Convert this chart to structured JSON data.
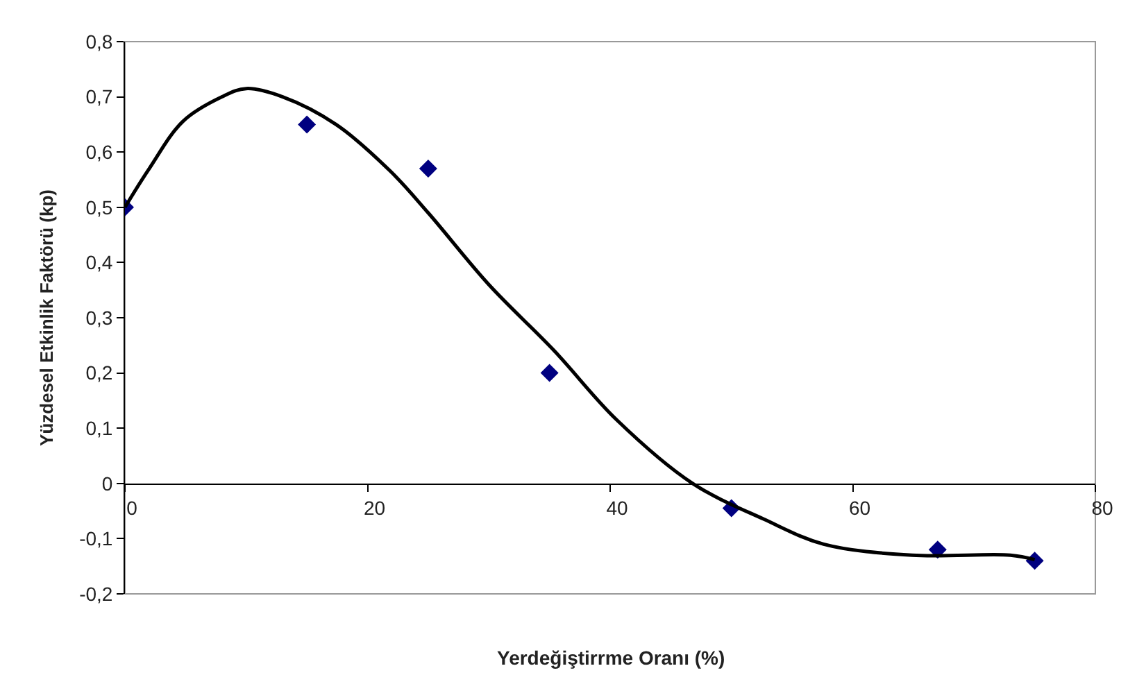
{
  "chart_data": {
    "type": "scatter",
    "xlabel": "Yerdeğiştirrme Oranı (%)",
    "ylabel": "Yüzdesel Etkinlik Faktörü (kp)",
    "x": [
      0,
      15,
      25,
      35,
      50,
      67,
      75
    ],
    "series": [
      {
        "color": "#000080",
        "marker": "diamond",
        "values": [
          0.5,
          0.65,
          0.57,
          0.2,
          -0.045,
          -0.12,
          -0.14
        ]
      },
      {
        "type": "line",
        "color": "#000000",
        "marker": "none",
        "x": [
          0,
          2,
          4.8,
          8,
          10,
          13,
          17.4,
          21.9,
          25,
          30,
          35.4,
          40.5,
          46.8,
          52.7,
          57.6,
          64.9,
          73,
          75
        ],
        "values": [
          0.5,
          0.57,
          0.656,
          0.7,
          0.715,
          0.7,
          0.65,
          0.565,
          0.49,
          0.36,
          0.24,
          0.116,
          0,
          -0.065,
          -0.11,
          -0.13,
          -0.13,
          -0.138
        ]
      }
    ],
    "xlim": [
      0,
      80
    ],
    "xticks": [
      0,
      20,
      40,
      60,
      80
    ],
    "ylim": [
      -0.2,
      0.8
    ],
    "yticks": [
      {
        "value": -0.2,
        "label": "-0,2"
      },
      {
        "value": -0.1,
        "label": "-0,1"
      },
      0,
      {
        "value": 0.1,
        "label": "0,1"
      },
      {
        "value": 0.2,
        "label": "0,2"
      },
      {
        "value": 0.3,
        "label": "0,3"
      },
      {
        "value": 0.4,
        "label": "0,4"
      },
      {
        "value": 0.5,
        "label": "0,5"
      },
      {
        "value": 0.6,
        "label": "0,6"
      },
      {
        "value": 0.7,
        "label": "0,7"
      },
      {
        "value": 0.8,
        "label": "0,8"
      }
    ],
    "grid": false
  }
}
